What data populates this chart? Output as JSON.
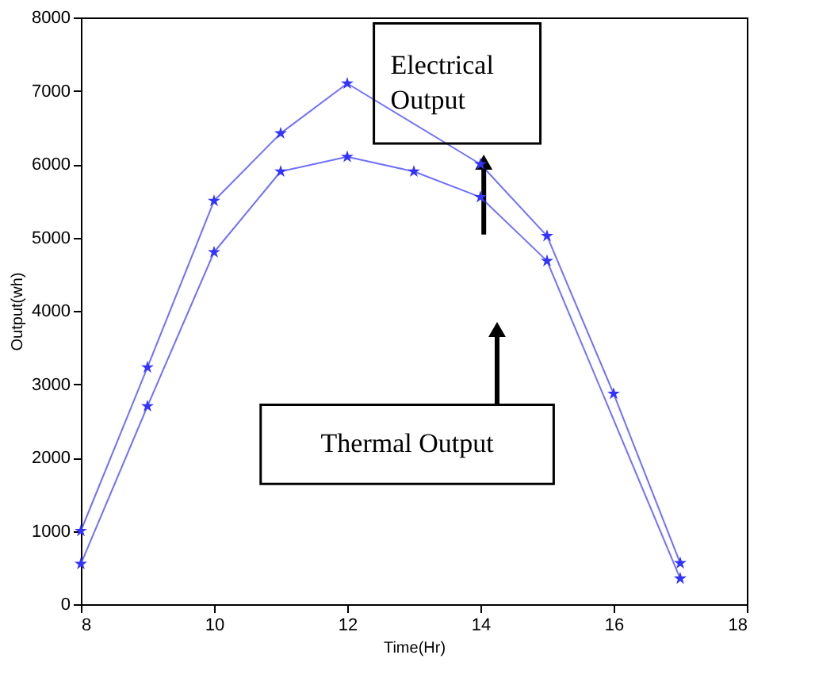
{
  "chart_data": {
    "type": "line",
    "xlabel": "Time(Hr)",
    "ylabel": "Output(wh)",
    "x": [
      8,
      9,
      10,
      11,
      12,
      13,
      14,
      15,
      16,
      17
    ],
    "series": [
      {
        "color": "#3333ff",
        "values": [
          1000,
          3230,
          5500,
          6420,
          7100,
          null,
          6000,
          5020,
          2870,
          560
        ]
      },
      {
        "color": "#3333ff",
        "values": [
          550,
          2700,
          4800,
          5900,
          6100,
          5900,
          5550,
          4680,
          null,
          350
        ]
      }
    ],
    "xlim": [
      8,
      18
    ],
    "xticks": [
      8,
      10,
      12,
      14,
      16,
      18
    ],
    "ylim": [
      0,
      8000
    ],
    "yticks": [
      0,
      1000,
      2000,
      3000,
      4000,
      5000,
      6000,
      7000,
      8000
    ],
    "grid": false,
    "marker": "star",
    "line_style": "solid",
    "annotations": [
      "Electrical\nOutput",
      "Thermal Output"
    ]
  }
}
